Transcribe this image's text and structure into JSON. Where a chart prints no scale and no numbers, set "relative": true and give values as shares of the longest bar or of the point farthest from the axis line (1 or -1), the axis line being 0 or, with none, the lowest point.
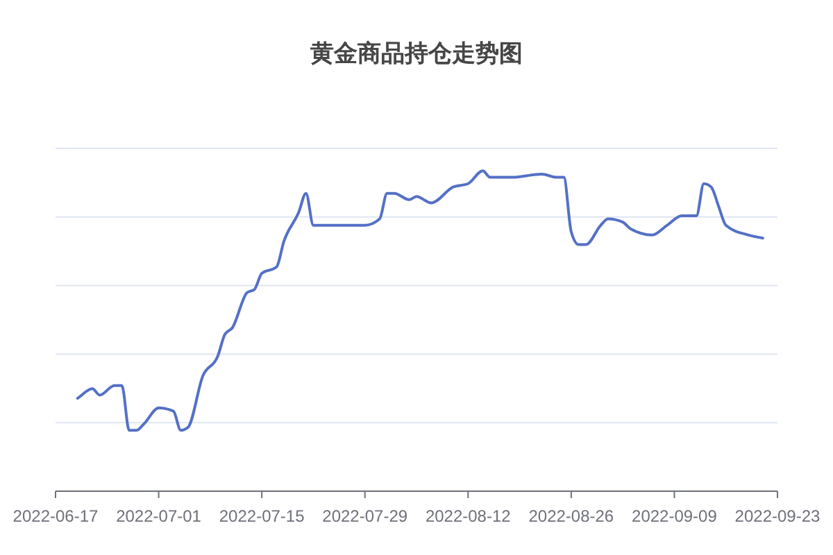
{
  "chart_data": {
    "type": "line",
    "title": "黄金商品持仓走势图",
    "relative": true,
    "grid": "y",
    "color": "#5470c6",
    "xlim": [
      "2022-06-17",
      "2022-09-23"
    ],
    "xticks": [
      "2022-06-17",
      "2022-07-01",
      "2022-07-15",
      "2022-07-29",
      "2022-08-12",
      "2022-08-26",
      "2022-09-09",
      "2022-09-23"
    ],
    "x": [
      "2022-06-20",
      "2022-06-22",
      "2022-06-23",
      "2022-06-25",
      "2022-06-26",
      "2022-06-27",
      "2022-06-28",
      "2022-06-29",
      "2022-07-01",
      "2022-07-03",
      "2022-07-04",
      "2022-07-05",
      "2022-07-07",
      "2022-07-09",
      "2022-07-10",
      "2022-07-11",
      "2022-07-13",
      "2022-07-14",
      "2022-07-15",
      "2022-07-17",
      "2022-07-18",
      "2022-07-20",
      "2022-07-21",
      "2022-07-22",
      "2022-07-25",
      "2022-07-27",
      "2022-07-29",
      "2022-07-31",
      "2022-08-01",
      "2022-08-02",
      "2022-08-04",
      "2022-08-05",
      "2022-08-07",
      "2022-08-10",
      "2022-08-12",
      "2022-08-14",
      "2022-08-15",
      "2022-08-18",
      "2022-08-22",
      "2022-08-24",
      "2022-08-25",
      "2022-08-26",
      "2022-08-27",
      "2022-08-28",
      "2022-08-30",
      "2022-08-31",
      "2022-09-02",
      "2022-09-03",
      "2022-09-06",
      "2022-09-08",
      "2022-09-10",
      "2022-09-12",
      "2022-09-13",
      "2022-09-14",
      "2022-09-15",
      "2022-09-16",
      "2022-09-19",
      "2022-09-21"
    ],
    "values": [
      0.29,
      0.32,
      0.3,
      0.33,
      0.33,
      0.19,
      0.19,
      0.21,
      0.26,
      0.25,
      0.19,
      0.2,
      0.36,
      0.42,
      0.49,
      0.51,
      0.62,
      0.63,
      0.68,
      0.7,
      0.78,
      0.87,
      0.93,
      0.83,
      0.83,
      0.83,
      0.83,
      0.85,
      0.93,
      0.93,
      0.91,
      0.92,
      0.9,
      0.95,
      0.96,
      1.0,
      0.98,
      0.98,
      0.99,
      0.98,
      0.98,
      0.81,
      0.77,
      0.77,
      0.83,
      0.85,
      0.84,
      0.82,
      0.8,
      0.83,
      0.86,
      0.86,
      0.96,
      0.95,
      0.89,
      0.83,
      0.8,
      0.79
    ]
  }
}
